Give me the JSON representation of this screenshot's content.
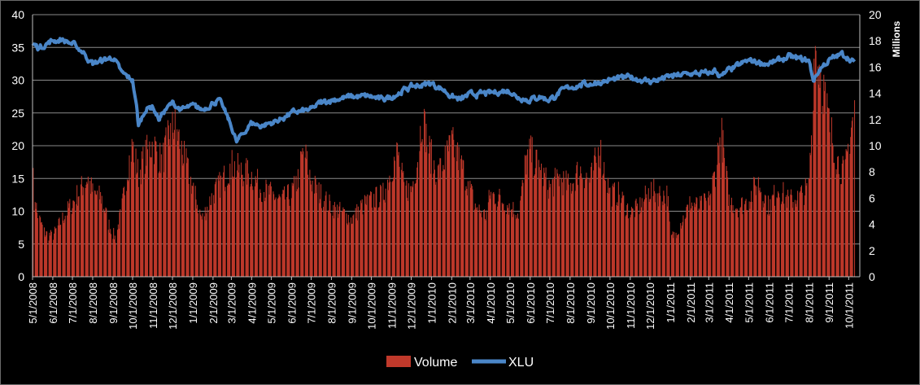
{
  "chart_data": {
    "type": "bar+line",
    "x_axis_labels": [
      "5/1/2008",
      "6/1/2008",
      "7/1/2008",
      "8/1/2008",
      "9/1/2008",
      "10/1/2008",
      "11/1/2008",
      "12/1/2008",
      "1/1/2009",
      "2/1/2009",
      "3/1/2009",
      "4/1/2009",
      "5/1/2009",
      "6/1/2009",
      "7/1/2009",
      "8/1/2009",
      "9/1/2009",
      "10/1/2009",
      "11/1/2009",
      "12/1/2009",
      "1/1/2010",
      "2/1/2010",
      "3/1/2010",
      "4/1/2010",
      "5/1/2010",
      "6/1/2010",
      "7/1/2010",
      "8/1/2010",
      "9/1/2010",
      "10/1/2010",
      "11/1/2010",
      "12/1/2010",
      "1/1/2011",
      "2/1/2011",
      "3/1/2011",
      "4/1/2011",
      "5/1/2011",
      "6/1/2011",
      "7/1/2011",
      "8/1/2011",
      "9/1/2011",
      "10/1/2011"
    ],
    "y_left": {
      "ticks": [
        "0",
        "5",
        "10",
        "15",
        "20",
        "25",
        "30",
        "35",
        "40"
      ],
      "min": 0,
      "max": 40,
      "label": ""
    },
    "y_right": {
      "ticks": [
        "0",
        "2",
        "4",
        "6",
        "8",
        "10",
        "12",
        "14",
        "16",
        "18",
        "20"
      ],
      "min": 0,
      "max": 20,
      "label": "Millions"
    },
    "grid": true,
    "legend_position": "bottom",
    "series": [
      {
        "name": "Volume",
        "kind": "bar",
        "axis": "right",
        "color": "#c0392b",
        "anchors": [
          [
            "5/1/2008",
            8.0
          ],
          [
            "5/8/2008",
            5.0
          ],
          [
            "5/20/2008",
            3.4
          ],
          [
            "6/1/2008",
            3.2
          ],
          [
            "6/15/2008",
            4.5
          ],
          [
            "7/1/2008",
            5.8
          ],
          [
            "7/15/2008",
            7.0
          ],
          [
            "7/25/2008",
            7.8
          ],
          [
            "8/1/2008",
            6.6
          ],
          [
            "8/15/2008",
            6.2
          ],
          [
            "8/25/2008",
            4.2
          ],
          [
            "9/5/2008",
            3.0
          ],
          [
            "9/15/2008",
            5.5
          ],
          [
            "9/25/2008",
            9.0
          ],
          [
            "10/1/2008",
            10.3
          ],
          [
            "10/10/2008",
            8.0
          ],
          [
            "10/20/2008",
            9.5
          ],
          [
            "11/1/2008",
            10.5
          ],
          [
            "11/15/2008",
            9.0
          ],
          [
            "11/25/2008",
            11.0
          ],
          [
            "12/5/2008",
            12.0
          ],
          [
            "12/15/2008",
            10.0
          ],
          [
            "1/1/2009",
            7.0
          ],
          [
            "1/15/2009",
            4.5
          ],
          [
            "2/1/2009",
            6.5
          ],
          [
            "2/15/2009",
            7.5
          ],
          [
            "3/1/2009",
            8.8
          ],
          [
            "3/15/2009",
            8.3
          ],
          [
            "4/1/2009",
            8.0
          ],
          [
            "4/15/2009",
            7.0
          ],
          [
            "5/1/2009",
            6.5
          ],
          [
            "5/15/2009",
            6.0
          ],
          [
            "6/1/2009",
            6.5
          ],
          [
            "6/10/2009",
            7.5
          ],
          [
            "6/20/2009",
            10.0
          ],
          [
            "7/1/2009",
            7.5
          ],
          [
            "7/15/2009",
            6.5
          ],
          [
            "8/1/2009",
            5.5
          ],
          [
            "8/20/2009",
            5.0
          ],
          [
            "9/1/2009",
            4.5
          ],
          [
            "9/15/2009",
            5.5
          ],
          [
            "10/1/2009",
            6.0
          ],
          [
            "10/20/2009",
            6.5
          ],
          [
            "11/1/2009",
            8.5
          ],
          [
            "11/10/2009",
            9.8
          ],
          [
            "11/20/2009",
            7.0
          ],
          [
            "12/1/2009",
            6.8
          ],
          [
            "12/10/2009",
            9.0
          ],
          [
            "12/18/2009",
            12.8
          ],
          [
            "12/28/2009",
            10.0
          ],
          [
            "1/10/2010",
            8.0
          ],
          [
            "1/20/2010",
            9.0
          ],
          [
            "2/1/2010",
            10.5
          ],
          [
            "2/10/2010",
            9.5
          ],
          [
            "2/25/2010",
            7.5
          ],
          [
            "3/10/2010",
            5.5
          ],
          [
            "3/25/2010",
            4.8
          ],
          [
            "4/1/2010",
            6.5
          ],
          [
            "4/15/2010",
            6.2
          ],
          [
            "5/1/2010",
            5.5
          ],
          [
            "5/15/2010",
            5.0
          ],
          [
            "5/25/2010",
            9.0
          ],
          [
            "6/1/2010",
            9.8
          ],
          [
            "6/10/2010",
            9.0
          ],
          [
            "6/20/2010",
            8.0
          ],
          [
            "7/1/2010",
            7.0
          ],
          [
            "7/15/2010",
            7.8
          ],
          [
            "8/1/2010",
            7.0
          ],
          [
            "8/15/2010",
            8.5
          ],
          [
            "9/1/2010",
            7.5
          ],
          [
            "9/15/2010",
            10.2
          ],
          [
            "10/1/2010",
            6.5
          ],
          [
            "10/15/2010",
            6.5
          ],
          [
            "11/1/2010",
            5.0
          ],
          [
            "11/15/2010",
            5.5
          ],
          [
            "12/1/2010",
            6.8
          ],
          [
            "12/15/2010",
            6.5
          ],
          [
            "12/28/2010",
            6.5
          ],
          [
            "1/1/2011",
            3.0
          ],
          [
            "1/10/2011",
            3.5
          ],
          [
            "1/20/2011",
            4.5
          ],
          [
            "2/1/2011",
            5.8
          ],
          [
            "2/15/2011",
            5.5
          ],
          [
            "3/1/2011",
            6.0
          ],
          [
            "3/10/2011",
            8.0
          ],
          [
            "3/20/2011",
            11.5
          ],
          [
            "4/1/2011",
            6.0
          ],
          [
            "4/15/2011",
            5.5
          ],
          [
            "5/1/2011",
            6.0
          ],
          [
            "5/15/2011",
            7.5
          ],
          [
            "6/1/2011",
            5.5
          ],
          [
            "6/15/2011",
            7.0
          ],
          [
            "7/1/2011",
            6.0
          ],
          [
            "7/15/2011",
            6.2
          ],
          [
            "8/1/2011",
            7.0
          ],
          [
            "8/5/2011",
            11.0
          ],
          [
            "8/10/2011",
            18.3
          ],
          [
            "8/20/2011",
            16.0
          ],
          [
            "9/1/2011",
            12.0
          ],
          [
            "9/15/2011",
            9.0
          ],
          [
            "9/25/2011",
            8.0
          ],
          [
            "10/1/2011",
            10.5
          ],
          [
            "10/10/2011",
            13.5
          ]
        ]
      },
      {
        "name": "XLU",
        "kind": "line",
        "axis": "left",
        "color": "#4a86c8",
        "anchors": [
          [
            "5/1/2008",
            35.5
          ],
          [
            "5/10/2008",
            35.0
          ],
          [
            "6/1/2008",
            36.0
          ],
          [
            "6/15/2008",
            36.2
          ],
          [
            "7/1/2008",
            35.5
          ],
          [
            "7/15/2008",
            34.5
          ],
          [
            "8/1/2008",
            32.5
          ],
          [
            "8/15/2008",
            33.0
          ],
          [
            "9/1/2008",
            33.5
          ],
          [
            "9/15/2008",
            31.0
          ],
          [
            "10/1/2008",
            30.0
          ],
          [
            "10/7/2008",
            26.0
          ],
          [
            "10/10/2008",
            23.0
          ],
          [
            "10/20/2008",
            25.5
          ],
          [
            "11/1/2008",
            26.0
          ],
          [
            "11/10/2008",
            24.0
          ],
          [
            "11/20/2008",
            25.5
          ],
          [
            "12/1/2008",
            26.5
          ],
          [
            "12/15/2008",
            25.5
          ],
          [
            "1/1/2009",
            26.0
          ],
          [
            "1/15/2009",
            25.5
          ],
          [
            "2/1/2009",
            26.5
          ],
          [
            "2/10/2009",
            27.0
          ],
          [
            "2/20/2009",
            25.0
          ],
          [
            "3/1/2009",
            23.0
          ],
          [
            "3/9/2009",
            20.5
          ],
          [
            "3/20/2009",
            22.0
          ],
          [
            "4/1/2009",
            23.5
          ],
          [
            "4/15/2009",
            23.0
          ],
          [
            "5/1/2009",
            23.5
          ],
          [
            "5/15/2009",
            24.0
          ],
          [
            "6/1/2009",
            25.0
          ],
          [
            "7/1/2009",
            25.5
          ],
          [
            "7/15/2009",
            26.5
          ],
          [
            "8/1/2009",
            27.0
          ],
          [
            "9/1/2009",
            27.5
          ],
          [
            "10/1/2009",
            27.5
          ],
          [
            "10/15/2009",
            27.0
          ],
          [
            "11/1/2009",
            27.5
          ],
          [
            "12/1/2009",
            29.0
          ],
          [
            "1/1/2010",
            29.5
          ],
          [
            "1/20/2010",
            28.5
          ],
          [
            "2/1/2010",
            27.5
          ],
          [
            "2/15/2010",
            27.0
          ],
          [
            "3/1/2010",
            27.8
          ],
          [
            "4/1/2010",
            28.0
          ],
          [
            "5/1/2010",
            28.5
          ],
          [
            "5/10/2010",
            27.5
          ],
          [
            "6/1/2010",
            27.0
          ],
          [
            "6/15/2010",
            27.5
          ],
          [
            "7/1/2010",
            27.0
          ],
          [
            "7/15/2010",
            28.0
          ],
          [
            "8/1/2010",
            29.0
          ],
          [
            "9/1/2010",
            29.5
          ],
          [
            "10/1/2010",
            30.0
          ],
          [
            "11/1/2010",
            30.5
          ],
          [
            "12/1/2010",
            29.8
          ],
          [
            "1/1/2011",
            30.5
          ],
          [
            "2/1/2011",
            31.0
          ],
          [
            "3/1/2011",
            31.0
          ],
          [
            "3/10/2011",
            31.5
          ],
          [
            "3/20/2011",
            30.5
          ],
          [
            "4/1/2011",
            31.5
          ],
          [
            "5/1/2011",
            33.0
          ],
          [
            "6/1/2011",
            32.5
          ],
          [
            "7/1/2011",
            33.5
          ],
          [
            "8/1/2011",
            33.0
          ],
          [
            "8/8/2011",
            30.0
          ],
          [
            "8/20/2011",
            32.0
          ],
          [
            "9/1/2011",
            33.0
          ],
          [
            "9/20/2011",
            34.0
          ],
          [
            "10/1/2011",
            33.5
          ],
          [
            "10/10/2011",
            32.5
          ]
        ]
      }
    ]
  },
  "legend": {
    "items": [
      {
        "label": "Volume"
      },
      {
        "label": "XLU"
      }
    ]
  },
  "colors": {
    "bar": "#c0392b",
    "line": "#4a86c8",
    "grid": "#8a8a8a",
    "background": "#000000"
  }
}
